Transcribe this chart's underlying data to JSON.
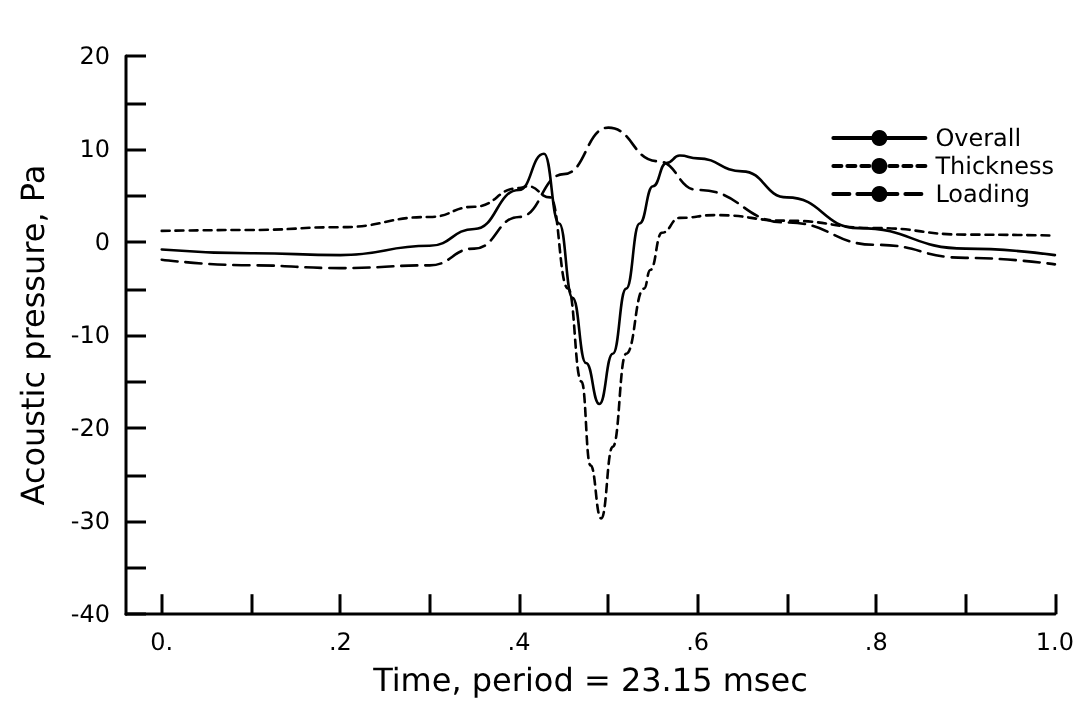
{
  "chart_data": {
    "type": "line",
    "xlabel": "Time, period = 23.15 msec",
    "ylabel": "Acoustic pressure, Pa",
    "xlim": [
      -0.04,
      1.0
    ],
    "xticks": [
      {
        "value": 0,
        "label": "0."
      },
      {
        "value": 0.1,
        "label": null
      },
      {
        "value": 0.2,
        "label": ".2"
      },
      {
        "value": 0.3,
        "label": null
      },
      {
        "value": 0.4,
        "label": ".4"
      },
      {
        "value": 0.5,
        "label": null
      },
      {
        "value": 0.6,
        "label": ".6"
      },
      {
        "value": 0.7,
        "label": null
      },
      {
        "value": 0.8,
        "label": ".8"
      },
      {
        "value": 0.9,
        "label": null
      },
      {
        "value": 1.0,
        "label": "1.0"
      }
    ],
    "ylim": [
      -40,
      20
    ],
    "yticks": [
      -40,
      {
        "value": -35,
        "label": null
      },
      -30,
      {
        "value": -25,
        "label": null
      },
      -20,
      {
        "value": -15,
        "label": null
      },
      -10,
      {
        "value": -5,
        "label": null
      },
      0,
      {
        "value": 5,
        "label": null
      },
      10,
      {
        "value": 15,
        "label": null
      },
      20
    ],
    "grid": false,
    "legend": "top right",
    "marker": "none",
    "series": [
      {
        "name": "Overall",
        "color": "#000000",
        "line_style": "solid",
        "x": [
          0,
          0.1,
          0.2,
          0.3,
          0.35,
          0.4,
          0.428,
          0.445,
          0.46,
          0.475,
          0.49,
          0.505,
          0.52,
          0.535,
          0.55,
          0.565,
          0.58,
          0.6,
          0.65,
          0.7,
          0.78,
          0.9,
          1.0
        ],
        "values": [
          -0.8,
          -1.2,
          -1.4,
          -0.4,
          1.4,
          5.6,
          9.5,
          2,
          -6,
          -13,
          -17.4,
          -12,
          -5,
          2,
          6,
          8.5,
          9.3,
          9,
          7.6,
          4.8,
          1.5,
          -0.7,
          -1.4
        ]
      },
      {
        "name": "Thickness",
        "color": "#000000",
        "line_style": "dashed",
        "x": [
          0,
          0.1,
          0.2,
          0.3,
          0.35,
          0.4,
          0.41,
          0.435,
          0.455,
          0.47,
          0.48,
          0.492,
          0.505,
          0.52,
          0.54,
          0.547,
          0.56,
          0.58,
          0.62,
          0.7,
          0.8,
          0.9,
          1.0
        ],
        "values": [
          1.2,
          1.3,
          1.6,
          2.7,
          3.8,
          5.8,
          6,
          4.8,
          -5,
          -15,
          -24,
          -29.7,
          -22,
          -12,
          -5,
          -3,
          1,
          2.6,
          2.9,
          2.3,
          1.5,
          0.8,
          0.7
        ]
      },
      {
        "name": "Loading",
        "color": "#000000",
        "line_style": "dashed",
        "x": [
          0,
          0.1,
          0.2,
          0.3,
          0.35,
          0.4,
          0.45,
          0.5,
          0.555,
          0.6,
          0.7,
          0.8,
          0.9,
          1.0
        ],
        "values": [
          -1.9,
          -2.5,
          -2.8,
          -2.5,
          -0.7,
          2.7,
          7.3,
          12.3,
          8.7,
          5.6,
          2.1,
          -0.3,
          -1.7,
          -2.4
        ]
      }
    ]
  }
}
